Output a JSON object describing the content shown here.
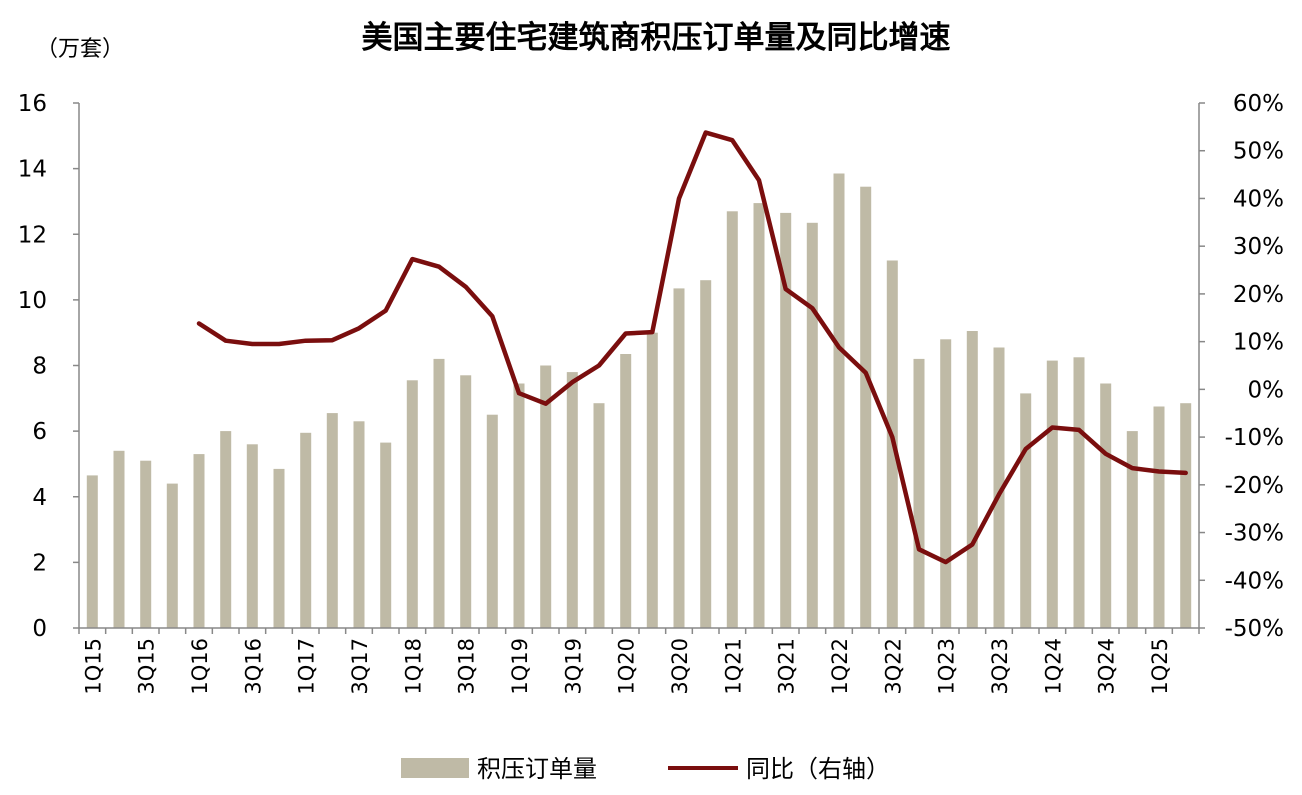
{
  "chart_data": {
    "type": "bar+line",
    "title": "美国主要住宅建筑商积压订单量及同比增速",
    "left_unit": "（万套）",
    "categories": [
      "1Q15",
      "2Q15",
      "3Q15",
      "4Q15",
      "1Q16",
      "2Q16",
      "3Q16",
      "4Q16",
      "1Q17",
      "2Q17",
      "3Q17",
      "4Q17",
      "1Q18",
      "2Q18",
      "3Q18",
      "4Q18",
      "1Q19",
      "2Q19",
      "3Q19",
      "4Q19",
      "1Q20",
      "2Q20",
      "3Q20",
      "4Q20",
      "1Q21",
      "2Q21",
      "3Q21",
      "4Q21",
      "1Q22",
      "2Q22",
      "3Q22",
      "4Q22",
      "1Q23",
      "2Q23",
      "3Q23",
      "4Q23",
      "1Q24",
      "2Q24",
      "3Q24",
      "4Q24",
      "1Q25",
      "2Q25"
    ],
    "x_tick_labels": [
      "1Q15",
      "3Q15",
      "1Q16",
      "3Q16",
      "1Q17",
      "3Q17",
      "1Q18",
      "3Q18",
      "1Q19",
      "3Q19",
      "1Q20",
      "3Q20",
      "1Q21",
      "3Q21",
      "1Q22",
      "3Q22",
      "1Q23",
      "3Q23",
      "1Q24",
      "3Q24",
      "1Q25"
    ],
    "left_axis": {
      "min": 0,
      "max": 16,
      "step": 2,
      "tick_labels": [
        "0",
        "2",
        "4",
        "6",
        "8",
        "10",
        "12",
        "14",
        "16"
      ]
    },
    "right_axis": {
      "min": -50,
      "max": 60,
      "step": 10,
      "tick_labels": [
        "-50%",
        "-40%",
        "-30%",
        "-20%",
        "-10%",
        "0%",
        "10%",
        "20%",
        "30%",
        "40%",
        "50%",
        "60%"
      ]
    },
    "series": [
      {
        "name": "积压订单量",
        "kind": "bar",
        "axis": "left",
        "color": "#bfbaa6",
        "values": [
          4.65,
          5.4,
          5.1,
          4.4,
          5.3,
          6.0,
          5.6,
          4.85,
          5.95,
          6.55,
          6.3,
          5.65,
          7.55,
          8.2,
          7.7,
          6.5,
          7.45,
          8.0,
          7.8,
          6.85,
          8.35,
          9.0,
          10.35,
          10.6,
          12.7,
          12.95,
          12.65,
          12.35,
          13.85,
          13.45,
          11.2,
          8.2,
          8.8,
          9.05,
          8.55,
          7.15,
          8.15,
          8.25,
          7.45,
          6.0,
          6.75,
          6.85
        ]
      },
      {
        "name": "同比（右轴）",
        "kind": "line",
        "axis": "right",
        "color": "#7a0e0e",
        "values": [
          null,
          null,
          null,
          null,
          13.8,
          10.2,
          9.5,
          9.5,
          10.2,
          10.3,
          12.8,
          16.5,
          27.3,
          25.7,
          21.5,
          15.3,
          -0.8,
          -3.0,
          1.5,
          5.0,
          11.7,
          12.0,
          40.0,
          53.8,
          52.2,
          43.8,
          21.0,
          17.0,
          8.8,
          3.5,
          -10.0,
          -33.5,
          -36.2,
          -32.5,
          -22.0,
          -12.5,
          -8.0,
          -8.5,
          -13.5,
          -16.5,
          -17.2,
          -17.5
        ]
      }
    ],
    "legend_position": "bottom"
  }
}
